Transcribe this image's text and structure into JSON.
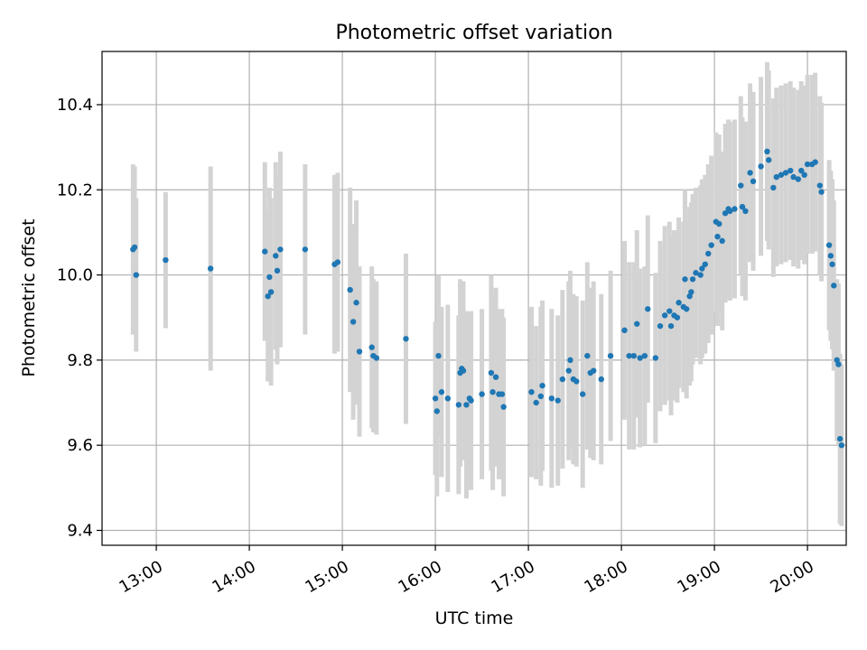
{
  "chart_data": {
    "type": "scatter",
    "title": "Photometric offset variation",
    "xlabel": "UTC time",
    "ylabel": "Photometric offset",
    "xlim": [
      "12:25",
      "20:25"
    ],
    "ylim": [
      9.365,
      10.525
    ],
    "x_ticks": [
      "13:00",
      "14:00",
      "15:00",
      "16:00",
      "17:00",
      "18:00",
      "19:00",
      "20:00"
    ],
    "y_ticks": [
      9.4,
      9.6,
      9.8,
      10.0,
      10.2,
      10.4
    ],
    "y_tick_labels": [
      "9.4",
      "9.6",
      "9.8",
      "10.0",
      "10.2",
      "10.4"
    ],
    "grid": true,
    "errorbar_color": "#d3d3d3",
    "marker_color": "#1f77b4",
    "series": [
      {
        "points": [
          [
            "12:45",
            10.06,
            0.2
          ],
          [
            "12:46",
            10.065,
            0.19
          ],
          [
            "12:47",
            10.0,
            0.18
          ],
          [
            "13:06",
            10.035,
            0.16
          ],
          [
            "13:35",
            10.015,
            0.24
          ],
          [
            "14:10",
            10.055,
            0.21
          ],
          [
            "14:12",
            9.95,
            0.2
          ],
          [
            "14:13",
            9.995,
            0.21
          ],
          [
            "14:14",
            9.96,
            0.22
          ],
          [
            "14:17",
            10.045,
            0.22
          ],
          [
            "14:18",
            10.01,
            0.22
          ],
          [
            "14:20",
            10.06,
            0.23
          ],
          [
            "14:36",
            10.06,
            0.2
          ],
          [
            "14:55",
            10.025,
            0.21
          ],
          [
            "14:57",
            10.03,
            0.21
          ],
          [
            "15:05",
            9.965,
            0.24
          ],
          [
            "15:07",
            9.89,
            0.23
          ],
          [
            "15:09",
            9.935,
            0.24
          ],
          [
            "15:11",
            9.82,
            0.2
          ],
          [
            "15:19",
            9.83,
            0.19
          ],
          [
            "15:20",
            9.81,
            0.18
          ],
          [
            "15:22",
            9.805,
            0.18
          ],
          [
            "15:41",
            9.85,
            0.2
          ],
          [
            "16:00",
            9.71,
            0.18
          ],
          [
            "16:01",
            9.68,
            0.2
          ],
          [
            "16:02",
            9.81,
            0.19
          ],
          [
            "16:04",
            9.725,
            0.2
          ],
          [
            "16:08",
            9.71,
            0.22
          ],
          [
            "16:15",
            9.695,
            0.21
          ],
          [
            "16:16",
            9.77,
            0.22
          ],
          [
            "16:17",
            9.78,
            0.2
          ],
          [
            "16:18",
            9.775,
            0.21
          ],
          [
            "16:20",
            9.695,
            0.22
          ],
          [
            "16:22",
            9.71,
            0.2
          ],
          [
            "16:23",
            9.705,
            0.21
          ],
          [
            "16:30",
            9.72,
            0.2
          ],
          [
            "16:36",
            9.77,
            0.23
          ],
          [
            "16:37",
            9.725,
            0.23
          ],
          [
            "16:39",
            9.76,
            0.21
          ],
          [
            "16:41",
            9.72,
            0.2
          ],
          [
            "16:43",
            9.72,
            0.2
          ],
          [
            "16:44",
            9.69,
            0.21
          ],
          [
            "17:02",
            9.725,
            0.2
          ],
          [
            "17:05",
            9.7,
            0.18
          ],
          [
            "17:08",
            9.715,
            0.21
          ],
          [
            "17:09",
            9.74,
            0.2
          ],
          [
            "17:15",
            9.71,
            0.21
          ],
          [
            "17:19",
            9.705,
            0.2
          ],
          [
            "17:22",
            9.755,
            0.21
          ],
          [
            "17:26",
            9.775,
            0.21
          ],
          [
            "17:27",
            9.8,
            0.21
          ],
          [
            "17:29",
            9.755,
            0.2
          ],
          [
            "17:31",
            9.75,
            0.2
          ],
          [
            "17:35",
            9.72,
            0.22
          ],
          [
            "17:38",
            9.81,
            0.22
          ],
          [
            "17:40",
            9.77,
            0.2
          ],
          [
            "17:42",
            9.775,
            0.21
          ],
          [
            "17:47",
            9.755,
            0.2
          ],
          [
            "17:53",
            9.81,
            0.2
          ],
          [
            "18:02",
            9.87,
            0.21
          ],
          [
            "18:05",
            9.81,
            0.22
          ],
          [
            "18:08",
            9.81,
            0.22
          ],
          [
            "18:10",
            9.885,
            0.22
          ],
          [
            "18:12",
            9.805,
            0.21
          ],
          [
            "18:15",
            9.81,
            0.21
          ],
          [
            "18:17",
            9.92,
            0.22
          ],
          [
            "18:22",
            9.805,
            0.2
          ],
          [
            "18:25",
            9.88,
            0.2
          ],
          [
            "18:28",
            9.905,
            0.21
          ],
          [
            "18:31",
            9.915,
            0.21
          ],
          [
            "18:32",
            9.88,
            0.21
          ],
          [
            "18:34",
            9.905,
            0.2
          ],
          [
            "18:36",
            9.9,
            0.2
          ],
          [
            "18:37",
            9.935,
            0.2
          ],
          [
            "18:40",
            9.925,
            0.2
          ],
          [
            "18:41",
            9.99,
            0.21
          ],
          [
            "18:42",
            9.92,
            0.21
          ],
          [
            "18:44",
            9.95,
            0.21
          ],
          [
            "18:45",
            9.96,
            0.21
          ],
          [
            "18:46",
            9.99,
            0.2
          ],
          [
            "18:48",
            10.005,
            0.2
          ],
          [
            "18:51",
            10.0,
            0.21
          ],
          [
            "18:52",
            10.015,
            0.21
          ],
          [
            "18:54",
            10.025,
            0.21
          ],
          [
            "18:56",
            10.05,
            0.21
          ],
          [
            "18:58",
            10.07,
            0.21
          ],
          [
            "19:01",
            10.125,
            0.21
          ],
          [
            "19:02",
            10.09,
            0.21
          ],
          [
            "19:03",
            10.12,
            0.21
          ],
          [
            "19:05",
            10.08,
            0.21
          ],
          [
            "19:07",
            10.145,
            0.21
          ],
          [
            "19:09",
            10.155,
            0.21
          ],
          [
            "19:10",
            10.15,
            0.21
          ],
          [
            "19:13",
            10.155,
            0.21
          ],
          [
            "19:17",
            10.21,
            0.21
          ],
          [
            "19:18",
            10.16,
            0.21
          ],
          [
            "19:20",
            10.15,
            0.21
          ],
          [
            "19:23",
            10.24,
            0.21
          ],
          [
            "19:25",
            10.22,
            0.21
          ],
          [
            "19:30",
            10.255,
            0.21
          ],
          [
            "19:34",
            10.29,
            0.21
          ],
          [
            "19:35",
            10.27,
            0.21
          ],
          [
            "19:38",
            10.205,
            0.21
          ],
          [
            "19:40",
            10.23,
            0.21
          ],
          [
            "19:43",
            10.235,
            0.21
          ],
          [
            "19:46",
            10.24,
            0.21
          ],
          [
            "19:49",
            10.245,
            0.21
          ],
          [
            "19:51",
            10.23,
            0.21
          ],
          [
            "19:54",
            10.225,
            0.21
          ],
          [
            "19:56",
            10.245,
            0.21
          ],
          [
            "19:58",
            10.235,
            0.21
          ],
          [
            "20:00",
            10.26,
            0.21
          ],
          [
            "20:03",
            10.26,
            0.21
          ],
          [
            "20:05",
            10.265,
            0.21
          ],
          [
            "20:08",
            10.21,
            0.21
          ],
          [
            "20:09",
            10.195,
            0.21
          ],
          [
            "20:14",
            10.07,
            0.2
          ],
          [
            "20:15",
            10.045,
            0.2
          ],
          [
            "20:16",
            10.025,
            0.2
          ],
          [
            "20:17",
            9.975,
            0.2
          ],
          [
            "20:19",
            9.8,
            0.19
          ],
          [
            "20:20",
            9.79,
            0.19
          ],
          [
            "20:21",
            9.615,
            0.2
          ],
          [
            "20:22",
            9.6,
            0.19
          ]
        ]
      }
    ]
  }
}
